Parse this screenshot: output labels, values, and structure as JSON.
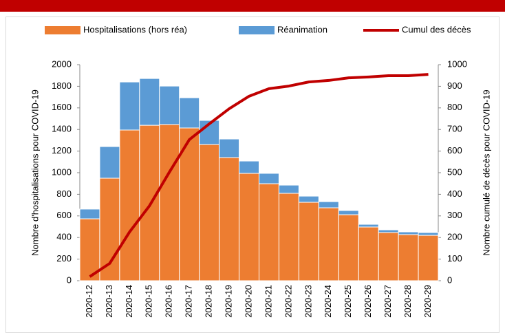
{
  "chart_data": {
    "type": "bar",
    "stacked": true,
    "categories": [
      "2020-12",
      "2020-13",
      "2020-14",
      "2020-15",
      "2020-16",
      "2020-17",
      "2020-18",
      "2020-19",
      "2020-20",
      "2020-21",
      "2020-22",
      "2020-23",
      "2020-24",
      "2020-25",
      "2020-26",
      "2020-27",
      "2020-28",
      "2020-29"
    ],
    "series": [
      {
        "name": "Hospitalisations (hors réa)",
        "type": "bar",
        "color": "#ed7d31",
        "values": [
          573,
          949,
          1395,
          1439,
          1446,
          1414,
          1261,
          1140,
          994,
          898,
          809,
          726,
          675,
          611,
          497,
          446,
          427,
          420
        ]
      },
      {
        "name": "Réanimation",
        "type": "bar",
        "color": "#5b9bd5",
        "values": [
          90,
          293,
          445,
          433,
          356,
          280,
          223,
          172,
          114,
          96,
          76,
          57,
          57,
          39,
          25,
          25,
          25,
          26
        ]
      },
      {
        "name": "Cumul des décès",
        "type": "line",
        "axis": "y2",
        "color": "#c00000",
        "values": [
          19,
          80,
          226,
          347,
          503,
          653,
          726,
          796,
          854,
          889,
          901,
          920,
          927,
          939,
          943,
          949,
          949,
          955
        ]
      }
    ],
    "ylabel": "Nombre d'hospitalisations pour COVID-19",
    "y2label": "Nombre cumulé de décès pour COVID-19",
    "ylim": [
      0,
      2000
    ],
    "yticks": [
      0,
      200,
      400,
      600,
      800,
      1000,
      1200,
      1400,
      1600,
      1800,
      2000
    ],
    "y2lim": [
      0,
      1000
    ],
    "y2ticks": [
      0,
      100,
      200,
      300,
      400,
      500,
      600,
      700,
      800,
      900,
      1000
    ],
    "grid": false
  }
}
